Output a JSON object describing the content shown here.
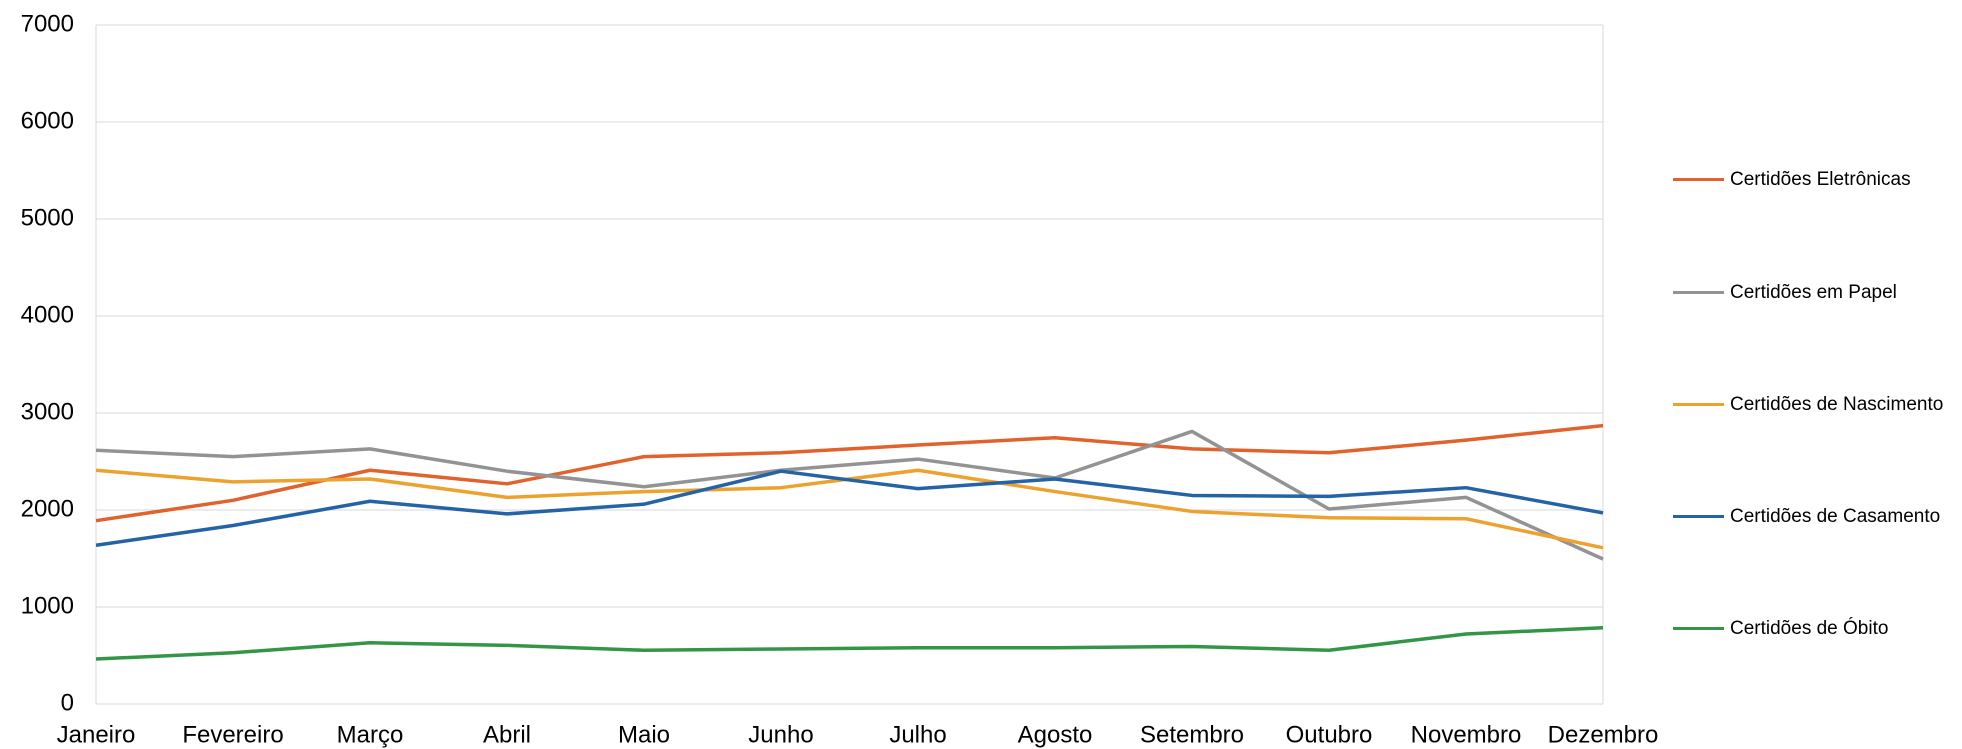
{
  "chart_data": {
    "type": "line",
    "categories": [
      "Janeiro",
      "Fevereiro",
      "Março",
      "Abril",
      "Maio",
      "Junho",
      "Julho",
      "Agosto",
      "Setembro",
      "Outubro",
      "Novembro",
      "Dezembro"
    ],
    "series": [
      {
        "name": "Certidões Eletrônicas",
        "color": "#e2622d",
        "values": [
          1890,
          2100,
          2410,
          2270,
          2550,
          2590,
          2670,
          2745,
          2630,
          2590,
          2720,
          2870
        ]
      },
      {
        "name": "Certidões em Papel",
        "color": "#939393",
        "values": [
          2616,
          2550,
          2630,
          2400,
          2240,
          2410,
          2525,
          2330,
          2810,
          2010,
          2130,
          1495
        ]
      },
      {
        "name": "Certidões de Nascimento",
        "color": "#eda22e",
        "values": [
          2410,
          2290,
          2320,
          2130,
          2190,
          2230,
          2410,
          2190,
          1985,
          1920,
          1910,
          1610
        ]
      },
      {
        "name": "Certidões de Casamento",
        "color": "#2463a6",
        "values": [
          1637,
          1840,
          2090,
          1960,
          2060,
          2400,
          2220,
          2320,
          2150,
          2140,
          2230,
          1970
        ]
      },
      {
        "name": "Certidões de Óbito",
        "color": "#339646",
        "values": [
          464,
          528,
          631,
          605,
          554,
          567,
          580,
          580,
          593,
          554,
          722,
          786
        ]
      }
    ],
    "ylim": [
      0,
      7000
    ],
    "yticks": [
      0,
      1000,
      2000,
      3000,
      4000,
      5000,
      6000,
      7000
    ],
    "grid": true,
    "legend": "right"
  }
}
